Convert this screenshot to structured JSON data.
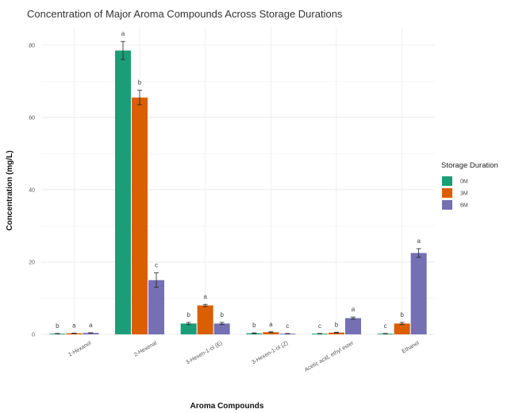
{
  "chart_data": {
    "type": "bar",
    "title": "Concentration of Major Aroma Compounds Across Storage Durations",
    "xlabel": "Aroma Compounds",
    "ylabel": "Concentration (mg/L)",
    "ylim": [
      0,
      85
    ],
    "yticks": [
      0,
      20,
      40,
      60,
      80
    ],
    "grid": true,
    "legend": {
      "title": "Storage Duration",
      "position": "right"
    },
    "categories": [
      "1-Hexanol",
      "2-Hexenal",
      "3-Hexen-1-ol (E)",
      "3-Hexen-1-ol (Z)",
      "Acetic acid, ethyl ester",
      "Ethanol"
    ],
    "series": [
      {
        "name": "0M",
        "color": "#1b9e77",
        "values": [
          0.2,
          78.5,
          3.0,
          0.3,
          0.2,
          0.2
        ],
        "errors": [
          0.05,
          2.5,
          0.3,
          0.1,
          0.05,
          0.05
        ],
        "letters": [
          "b",
          "a",
          "b",
          "b",
          "c",
          "c"
        ]
      },
      {
        "name": "3M",
        "color": "#d95f02",
        "values": [
          0.3,
          65.5,
          8.0,
          0.6,
          0.5,
          3.0
        ],
        "errors": [
          0.05,
          2.0,
          0.3,
          0.1,
          0.1,
          0.3
        ],
        "letters": [
          "a",
          "b",
          "a",
          "a",
          "b",
          "b"
        ]
      },
      {
        "name": "6M",
        "color": "#7570b3",
        "values": [
          0.4,
          15.0,
          3.0,
          0.2,
          4.5,
          22.5
        ],
        "errors": [
          0.05,
          2.0,
          0.3,
          0.05,
          0.3,
          1.2
        ],
        "letters": [
          "a",
          "c",
          "b",
          "c",
          "a",
          "a"
        ]
      }
    ]
  }
}
